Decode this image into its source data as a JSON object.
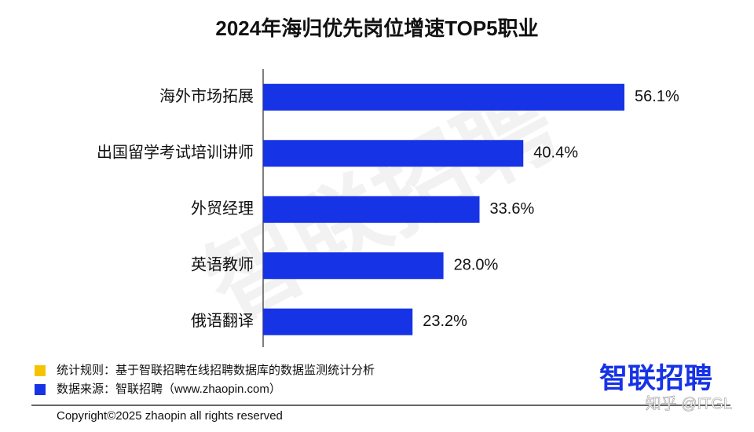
{
  "chart_data": {
    "type": "bar",
    "orientation": "horizontal",
    "title": "2024年海归优先岗位增速TOP5职业",
    "categories": [
      "海外市场拓展",
      "出国留学考试培训讲师",
      "外贸经理",
      "英语教师",
      "俄语翻译"
    ],
    "values": [
      56.1,
      40.4,
      33.6,
      28.0,
      23.2
    ],
    "value_labels": [
      "56.1%",
      "40.4%",
      "33.6%",
      "28.0%",
      "23.2%"
    ],
    "color": "#1733e6"
  },
  "footer": {
    "notes": [
      {
        "text": "统计规则：基于智联招聘在线招聘数据库的数据监测统计分析",
        "color": "#f5c400"
      },
      {
        "text": "数据来源：智联招聘（www.zhaopin.com）",
        "color": "#1733e6"
      }
    ],
    "copyright": "Copyright©2025 zhaopin all rights reserved",
    "logo": "智联招聘",
    "watermark": "智联招聘",
    "source_watermark": "知乎 @ITGL"
  }
}
